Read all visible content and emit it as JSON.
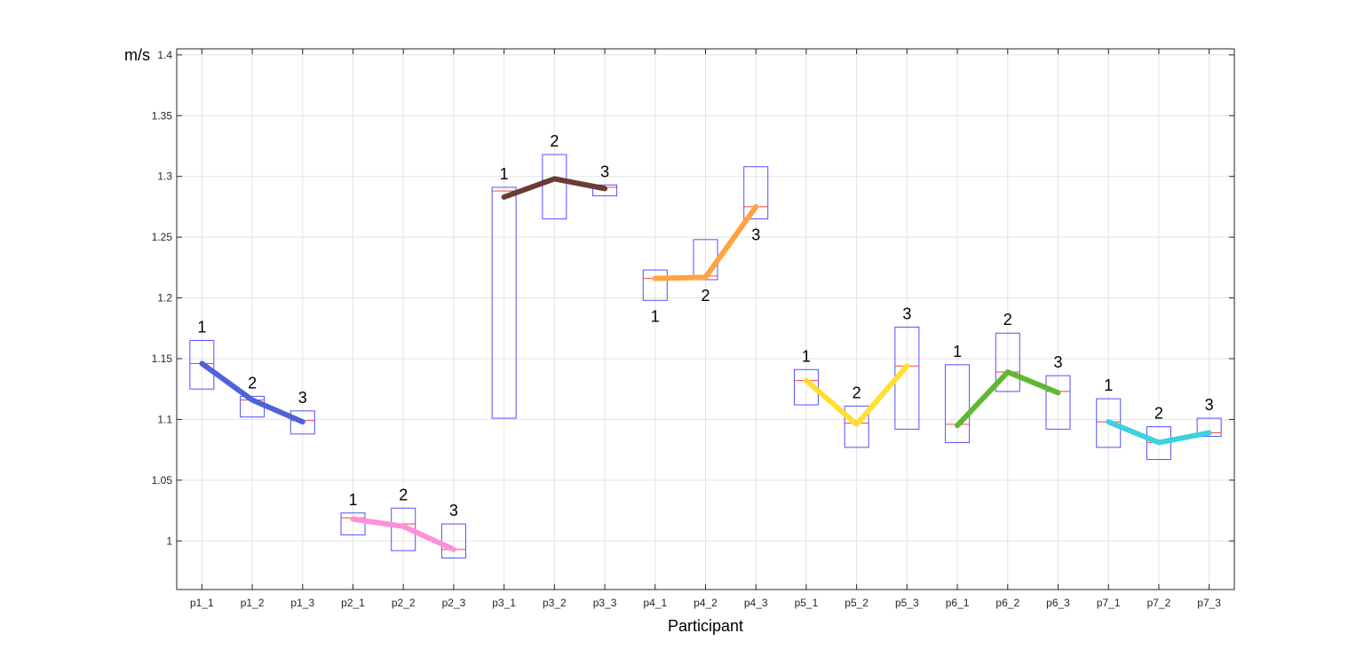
{
  "chart_data": {
    "type": "box",
    "title": "",
    "xlabel": "Participant",
    "ylabel": "m/s",
    "ylim": [
      0.96,
      1.405
    ],
    "yticks": [
      1,
      1.05,
      1.1,
      1.15,
      1.2,
      1.25,
      1.3,
      1.35,
      1.4
    ],
    "ytick_labels": [
      "1",
      "1.05",
      "1.1",
      "1.15",
      "1.2",
      "1.25",
      "1.3",
      "1.35",
      "1.4"
    ],
    "categories": [
      "p1_1",
      "p1_2",
      "p1_3",
      "p2_1",
      "p2_2",
      "p2_3",
      "p3_1",
      "p3_2",
      "p3_3",
      "p4_1",
      "p4_2",
      "p4_3",
      "p5_1",
      "p5_2",
      "p5_3",
      "p6_1",
      "p6_2",
      "p6_3",
      "p7_1",
      "p7_2",
      "p7_3"
    ],
    "grid": true,
    "boxes": [
      {
        "category": "p1_1",
        "q1": 1.125,
        "q3": 1.165,
        "median": 1.146
      },
      {
        "category": "p1_2",
        "q1": 1.102,
        "q3": 1.119,
        "median": 1.116
      },
      {
        "category": "p1_3",
        "q1": 1.088,
        "q3": 1.107,
        "median": 1.099
      },
      {
        "category": "p2_1",
        "q1": 1.005,
        "q3": 1.023,
        "median": 1.019
      },
      {
        "category": "p2_2",
        "q1": 0.992,
        "q3": 1.027,
        "median": 1.014
      },
      {
        "category": "p2_3",
        "q1": 0.986,
        "q3": 1.014,
        "median": 0.993
      },
      {
        "category": "p3_1",
        "q1": 1.101,
        "q3": 1.291,
        "median": 1.288
      },
      {
        "category": "p3_2",
        "q1": 1.265,
        "q3": 1.318,
        "median": 1.297
      },
      {
        "category": "p3_3",
        "q1": 1.284,
        "q3": 1.293,
        "median": 1.291
      },
      {
        "category": "p4_1",
        "q1": 1.198,
        "q3": 1.223,
        "median": 1.216
      },
      {
        "category": "p4_2",
        "q1": 1.215,
        "q3": 1.248,
        "median": 1.218
      },
      {
        "category": "p4_3",
        "q1": 1.265,
        "q3": 1.308,
        "median": 1.275
      },
      {
        "category": "p5_1",
        "q1": 1.112,
        "q3": 1.141,
        "median": 1.132
      },
      {
        "category": "p5_2",
        "q1": 1.077,
        "q3": 1.111,
        "median": 1.097
      },
      {
        "category": "p5_3",
        "q1": 1.092,
        "q3": 1.176,
        "median": 1.144
      },
      {
        "category": "p6_1",
        "q1": 1.081,
        "q3": 1.145,
        "median": 1.096
      },
      {
        "category": "p6_2",
        "q1": 1.123,
        "q3": 1.171,
        "median": 1.139
      },
      {
        "category": "p6_3",
        "q1": 1.092,
        "q3": 1.136,
        "median": 1.123
      },
      {
        "category": "p7_1",
        "q1": 1.077,
        "q3": 1.117,
        "median": 1.098
      },
      {
        "category": "p7_2",
        "q1": 1.067,
        "q3": 1.094,
        "median": 1.081
      },
      {
        "category": "p7_3",
        "q1": 1.086,
        "q3": 1.101,
        "median": 1.089
      }
    ],
    "series": [
      {
        "color": "#4c63d9",
        "x": [
          "p1_1",
          "p1_2",
          "p1_3"
        ],
        "values": [
          1.146,
          1.116,
          1.098
        ],
        "labels": [
          "1",
          "2",
          "3"
        ],
        "label_pos": [
          "above",
          "above",
          "above"
        ]
      },
      {
        "color": "#ff8fd8",
        "x": [
          "p2_1",
          "p2_2",
          "p2_3"
        ],
        "values": [
          1.018,
          1.012,
          0.993
        ],
        "labels": [
          "1",
          "2",
          "3"
        ],
        "label_pos": [
          "above",
          "above",
          "above"
        ]
      },
      {
        "color": "#6b3b34",
        "x": [
          "p3_1",
          "p3_2",
          "p3_3"
        ],
        "values": [
          1.283,
          1.298,
          1.29
        ],
        "labels": [
          "1",
          "2",
          "3"
        ],
        "label_pos": [
          "above",
          "above",
          "above"
        ]
      },
      {
        "color": "#ffa340",
        "x": [
          "p4_1",
          "p4_2",
          "p4_3"
        ],
        "values": [
          1.216,
          1.217,
          1.275
        ],
        "labels": [
          "1",
          "2",
          "3"
        ],
        "label_pos": [
          "below",
          "below",
          "below"
        ]
      },
      {
        "color": "#ffe030",
        "x": [
          "p5_1",
          "p5_2",
          "p5_3"
        ],
        "values": [
          1.132,
          1.096,
          1.144
        ],
        "labels": [
          "1",
          "2",
          "3"
        ],
        "label_pos": [
          "above",
          "above",
          "above"
        ]
      },
      {
        "color": "#5fb832",
        "x": [
          "p6_1",
          "p6_2",
          "p6_3"
        ],
        "values": [
          1.095,
          1.139,
          1.122
        ],
        "labels": [
          "1",
          "2",
          "3"
        ],
        "label_pos": [
          "above",
          "above",
          "above"
        ]
      },
      {
        "color": "#3dd1e0",
        "x": [
          "p7_1",
          "p7_2",
          "p7_3"
        ],
        "values": [
          1.098,
          1.081,
          1.089
        ],
        "labels": [
          "1",
          "2",
          "3"
        ],
        "label_pos": [
          "above",
          "above",
          "above"
        ]
      }
    ],
    "colors": {
      "box_edge": "#5050ff",
      "median": "#ff4040",
      "grid": "#e3e3e3",
      "axis": "#262626"
    }
  }
}
